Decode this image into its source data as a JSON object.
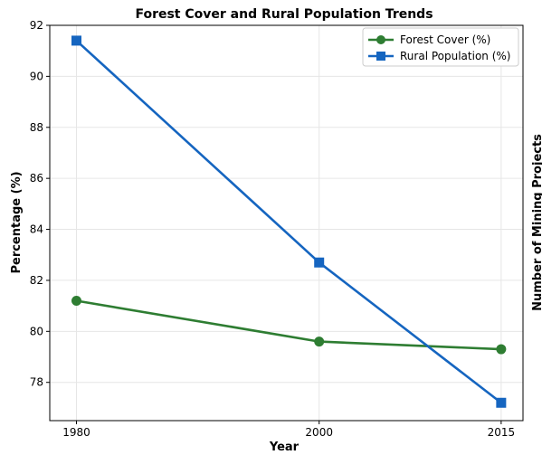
{
  "chart_data": {
    "type": "line",
    "title": "Forest Cover and Rural Population Trends",
    "xlabel": "Year",
    "ylabel": "Percentage (%)",
    "y2label": "Number of Mining Projects",
    "x": [
      1980,
      2000,
      2015
    ],
    "x_ticks": [
      "1980",
      "2000",
      "2015"
    ],
    "ylim": [
      76.5,
      92.0
    ],
    "y_ticks": [
      "78",
      "80",
      "82",
      "84",
      "86",
      "88",
      "90",
      "92"
    ],
    "grid": true,
    "legend_position": "top-right",
    "series": [
      {
        "name": "Forest Cover (%)",
        "values": [
          81.2,
          79.6,
          79.3
        ],
        "color": "#2e7d32",
        "marker": "circle"
      },
      {
        "name": "Rural Population (%)",
        "values": [
          91.4,
          82.7,
          77.2
        ],
        "color": "#1565c0",
        "marker": "square"
      }
    ],
    "y2label_color": "#d32f2f"
  }
}
